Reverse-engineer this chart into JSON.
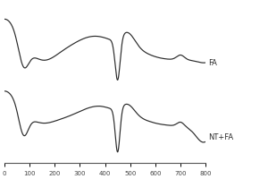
{
  "x_min": 0,
  "x_max": 800,
  "x_ticks": [
    0,
    100,
    200,
    300,
    400,
    500,
    600,
    700,
    800
  ],
  "background_color": "#ffffff",
  "line_color": "#2a2a2a",
  "label_FA": "FA",
  "label_NT_FA": "NT+FA",
  "label_fontsize": 6,
  "tick_fontsize": 5,
  "figsize": [
    3.0,
    2.0
  ],
  "dpi": 100
}
